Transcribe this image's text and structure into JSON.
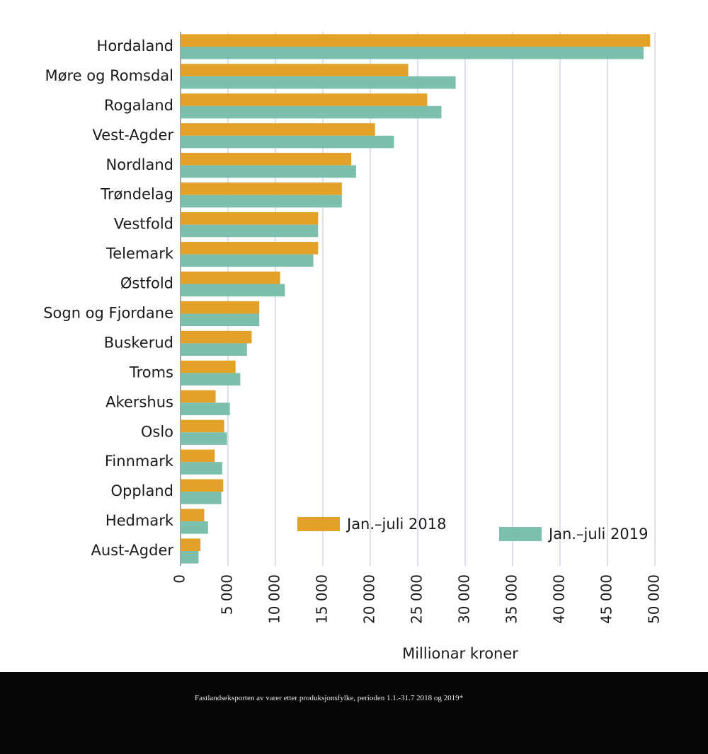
{
  "chart_data": {
    "type": "bar",
    "orientation": "horizontal",
    "categories": [
      "Hordaland",
      "Møre og Romsdal",
      "Rogaland",
      "Vest-Agder",
      "Nordland",
      "Trøndelag",
      "Vestfold",
      "Telemark",
      "Østfold",
      "Sogn og Fjordane",
      "Buskerud",
      "Troms",
      "Akershus",
      "Oslo",
      "Finnmark",
      "Oppland",
      "Hedmark",
      "Aust-Agder"
    ],
    "series": [
      {
        "name": "Jan.–juli 2018",
        "color": "#e3a128",
        "values": [
          49500,
          24000,
          26000,
          20500,
          18000,
          17000,
          14500,
          14500,
          10500,
          8300,
          7500,
          5800,
          3700,
          4600,
          3600,
          4500,
          2500,
          2100
        ]
      },
      {
        "name": "Jan.–juli 2019",
        "color": "#7cbfad",
        "values": [
          48800,
          29000,
          27500,
          22500,
          18500,
          17000,
          14500,
          14000,
          11000,
          8300,
          7000,
          6300,
          5200,
          4900,
          4400,
          4300,
          2900,
          1900
        ]
      }
    ],
    "xlim": [
      0,
      50000
    ],
    "xticks": [
      0,
      {
        "value": 5000,
        "label": "5 000"
      },
      {
        "value": 10000,
        "label": "10 000"
      },
      {
        "value": 15000,
        "label": "15 000"
      },
      {
        "value": 20000,
        "label": "20 000"
      },
      {
        "value": 25000,
        "label": "25 000"
      },
      {
        "value": 30000,
        "label": "30 000"
      },
      {
        "value": 35000,
        "label": "35 000"
      },
      {
        "value": 40000,
        "label": "40 000"
      },
      {
        "value": 45000,
        "label": "45 000"
      },
      {
        "value": 50000,
        "label": "50 000"
      }
    ],
    "xlabel": "Millionar kroner",
    "grid": true,
    "legend": "lower right",
    "caption": "Fastlandseksporten av varer etter produksjonsfylke, perioden 1.1.-31.7 2018 og 2019*"
  }
}
